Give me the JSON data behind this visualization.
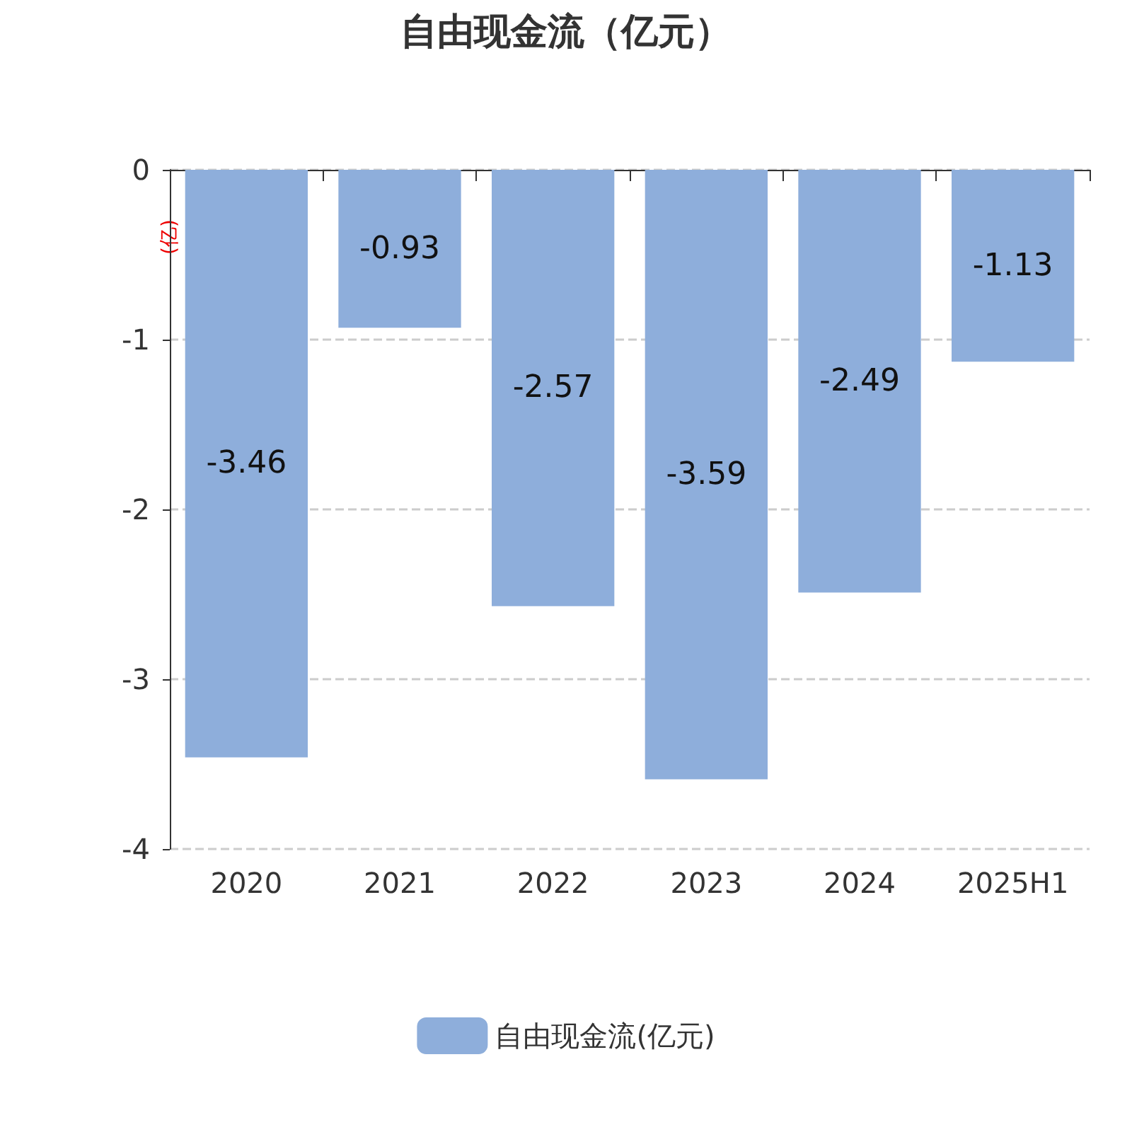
{
  "chart_data": {
    "type": "bar",
    "title": "自由现金流（亿元）",
    "ylabel": "(亿)",
    "categories": [
      "2020",
      "2021",
      "2022",
      "2023",
      "2024",
      "2025H1"
    ],
    "series": [
      {
        "name": "自由现金流(亿元)",
        "color": "#8eaedb",
        "values": [
          -3.46,
          -0.93,
          -2.57,
          -3.59,
          -2.49,
          -1.13
        ]
      }
    ],
    "ylim": [
      -4,
      0
    ],
    "yticks": [
      0,
      -1,
      -2,
      -3,
      -4
    ],
    "grid": "y",
    "legend": "bottom",
    "data_labels": true
  }
}
